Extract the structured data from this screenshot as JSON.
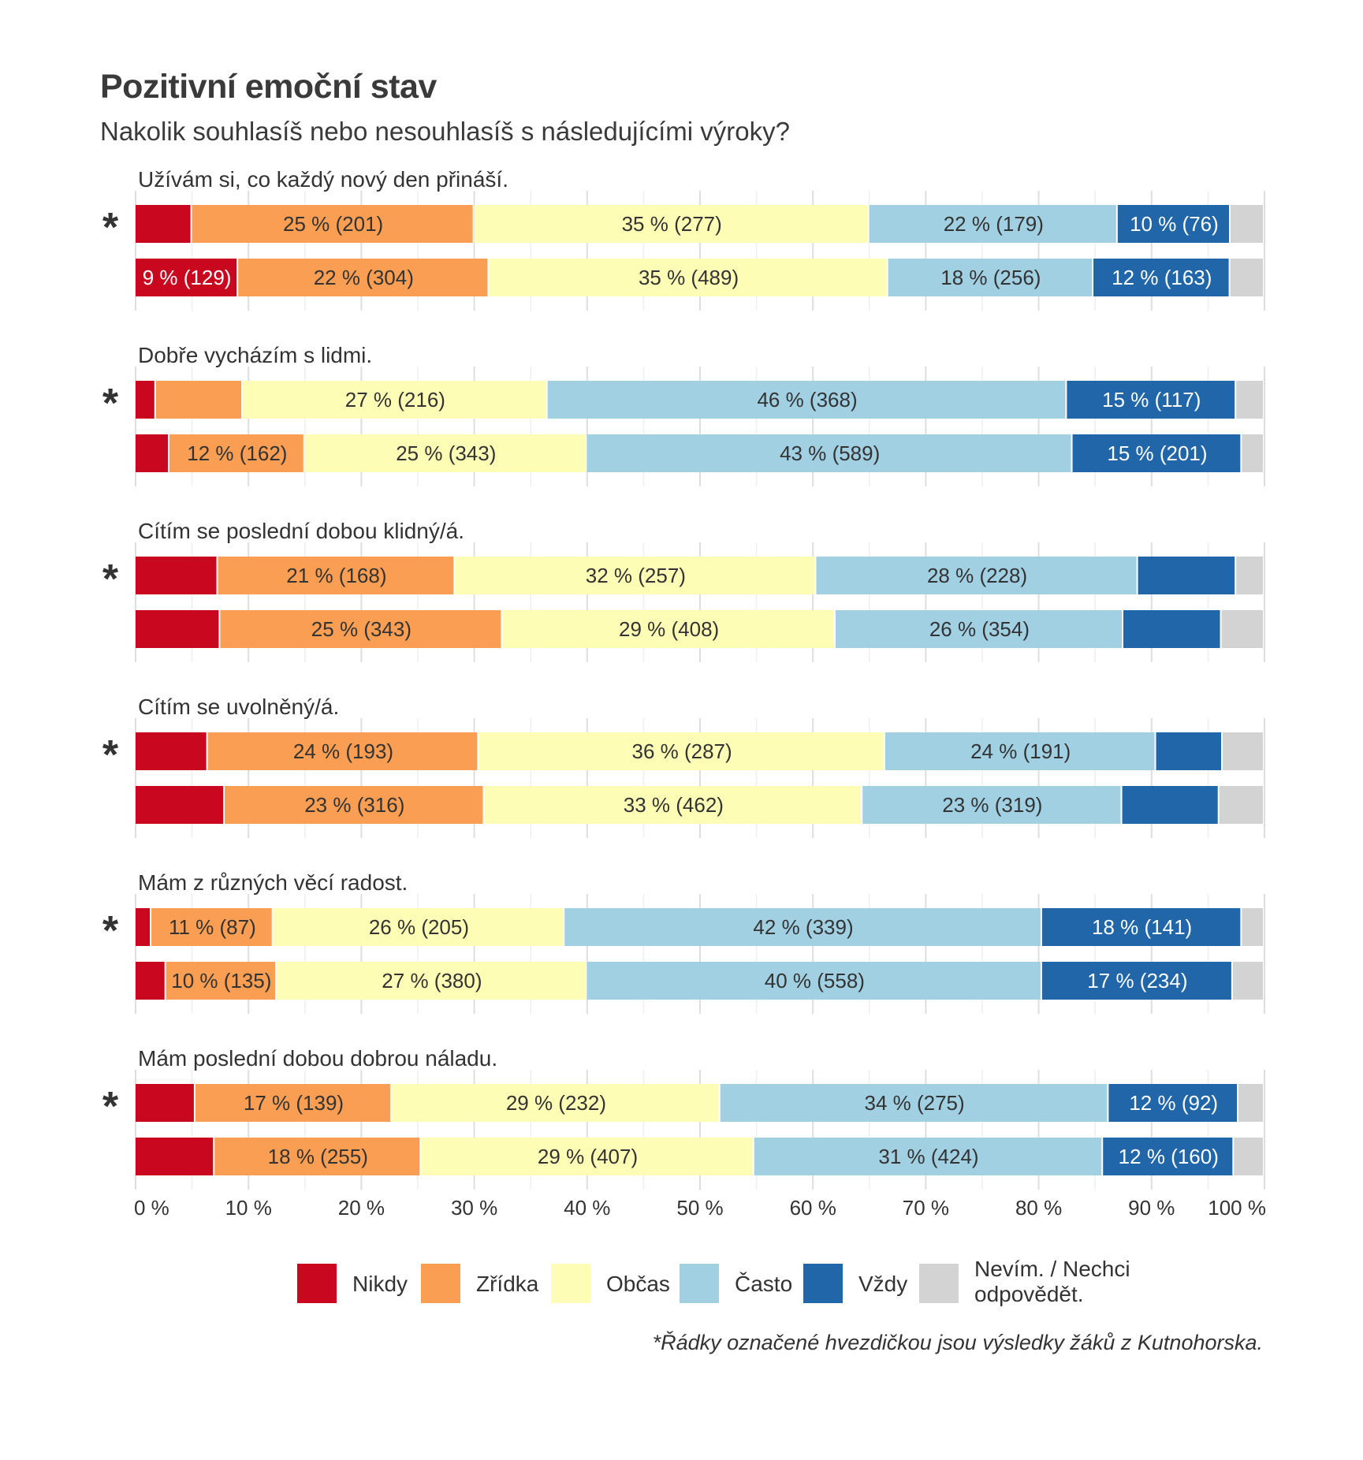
{
  "header": {
    "title": "Pozitivní emoční stav",
    "subtitle": "Nakolik souhlasíš nebo nesouhlasíš s následujícími výroky?"
  },
  "footnote": "*Řádky označené hvezdičkou jsou výsledky žáků z Kutnohorska.",
  "colors": {
    "Nikdy": "#c9071e",
    "Zřídka": "#f99e52",
    "Občas": "#fefdb6",
    "Často": "#a1d0e3",
    "Vždy": "#2066a9",
    "Nevím": "#d3d3d3",
    "grid": "#dedede"
  },
  "chart_data": {
    "type": "bar",
    "orientation": "horizontal",
    "stacked": true,
    "xlim": [
      0,
      100
    ],
    "x_ticks": [
      "0 %",
      "10 %",
      "20 %",
      "30 %",
      "40 %",
      "50 %",
      "60 %",
      "70 %",
      "80 %",
      "90 %",
      "100 %"
    ],
    "grid": true,
    "legend_position": "bottom",
    "categories": [
      "Nikdy",
      "Zřídka",
      "Občas",
      "Často",
      "Vždy",
      "Nevím. / Nechci odpovědět."
    ],
    "groups": [
      {
        "question": "Užívám si, co každý nový den přináší.",
        "rows": [
          {
            "marker": "*",
            "values": [
              5,
              25,
              35,
              22,
              10,
              3
            ],
            "labels": [
              "",
              "25 % (201)",
              "35 % (277)",
              "22 % (179)",
              "10 % (76)",
              ""
            ]
          },
          {
            "marker": "",
            "values": [
              9,
              22,
              35,
              18,
              12,
              3
            ],
            "labels": [
              "9 % (129)",
              "22 % (304)",
              "35 % (489)",
              "18 % (256)",
              "12 % (163)",
              ""
            ]
          }
        ]
      },
      {
        "question": "Dobře vycházím s lidmi.",
        "rows": [
          {
            "marker": "*",
            "values": [
              1.8,
              7.7,
              27,
              46,
              15,
              2.5
            ],
            "labels": [
              "",
              "",
              "27 % (216)",
              "46 % (368)",
              "15 % (117)",
              ""
            ]
          },
          {
            "marker": "",
            "values": [
              3,
              12,
              25,
              43,
              15,
              2
            ],
            "labels": [
              "",
              "12 % (162)",
              "25 % (343)",
              "43 % (589)",
              "15 % (201)",
              ""
            ]
          }
        ]
      },
      {
        "question": "Cítím se poslední dobou klidný/á.",
        "rows": [
          {
            "marker": "*",
            "values": [
              7.3,
              21,
              32,
              28.5,
              8.7,
              2.5
            ],
            "labels": [
              "",
              "21 % (168)",
              "32 % (257)",
              "28 % (228)",
              "",
              ""
            ]
          },
          {
            "marker": "",
            "values": [
              7.5,
              25,
              29.5,
              25.5,
              8.7,
              3.8
            ],
            "labels": [
              "",
              "25 % (343)",
              "29 % (408)",
              "26 % (354)",
              "",
              ""
            ]
          }
        ]
      },
      {
        "question": "Cítím se uvolněný/á.",
        "rows": [
          {
            "marker": "*",
            "values": [
              6.4,
              24,
              36,
              24,
              5.9,
              3.7
            ],
            "labels": [
              "",
              "24 % (193)",
              "36 % (287)",
              "24 % (191)",
              "",
              ""
            ]
          },
          {
            "marker": "",
            "values": [
              7.9,
              23,
              33.5,
              23,
              8.6,
              4
            ],
            "labels": [
              "",
              "23 % (316)",
              "33 % (462)",
              "23 % (319)",
              "",
              ""
            ]
          }
        ]
      },
      {
        "question": "Mám z různých věcí radost.",
        "rows": [
          {
            "marker": "*",
            "values": [
              1.4,
              10.8,
              25.8,
              42.3,
              17.7,
              2
            ],
            "labels": [
              "",
              "11 % (87)",
              "26 % (205)",
              "42 % (339)",
              "18 % (141)",
              ""
            ]
          },
          {
            "marker": "",
            "values": [
              2.7,
              9.8,
              27.5,
              40.3,
              16.9,
              2.8
            ],
            "labels": [
              "",
              "10 % (135)",
              "27 % (380)",
              "40 % (558)",
              "17 % (234)",
              ""
            ]
          }
        ]
      },
      {
        "question": "Mám poslední dobou dobrou náladu.",
        "rows": [
          {
            "marker": "*",
            "values": [
              5.3,
              17.4,
              29.1,
              34.4,
              11.5,
              2.3
            ],
            "labels": [
              "",
              "17 % (139)",
              "29 % (232)",
              "34 % (275)",
              "12 % (92)",
              ""
            ]
          },
          {
            "marker": "",
            "values": [
              7,
              18.3,
              29.5,
              30.9,
              11.6,
              2.7
            ],
            "labels": [
              "",
              "18 % (255)",
              "29 % (407)",
              "31 % (424)",
              "12 % (160)",
              ""
            ]
          }
        ]
      }
    ]
  }
}
